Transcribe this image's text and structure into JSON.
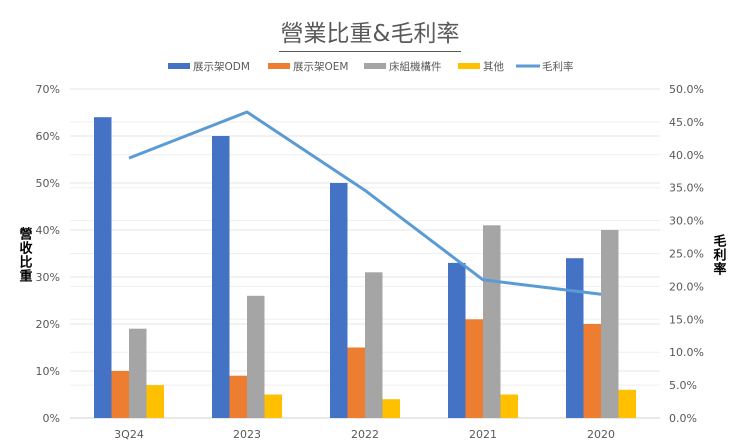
{
  "chart_data": {
    "type": "bar+line",
    "title": "營業比重&毛利率",
    "categories": [
      "3Q24",
      "2023",
      "2022",
      "2021",
      "2020"
    ],
    "ylabel": "營收比重",
    "y2label": "毛利率",
    "ylim": [
      0,
      70
    ],
    "y2lim": [
      0,
      50
    ],
    "yticks": [
      "0%",
      "10%",
      "20%",
      "30%",
      "40%",
      "50%",
      "60%",
      "70%"
    ],
    "y2ticks": [
      "0.0%",
      "5.0%",
      "10.0%",
      "15.0%",
      "20.0%",
      "25.0%",
      "30.0%",
      "35.0%",
      "40.0%",
      "45.0%",
      "50.0%"
    ],
    "legend_position": "top",
    "grid": true,
    "series": [
      {
        "name": "展示架ODM",
        "type": "bar",
        "axis": "left",
        "color": "#4472C4",
        "values": [
          64,
          60,
          50,
          33,
          34
        ]
      },
      {
        "name": "展示架OEM",
        "type": "bar",
        "axis": "left",
        "color": "#ED7D31",
        "values": [
          10,
          9,
          15,
          21,
          20
        ]
      },
      {
        "name": "床組機構件",
        "type": "bar",
        "axis": "left",
        "color": "#A5A5A5",
        "values": [
          19,
          26,
          31,
          41,
          40
        ]
      },
      {
        "name": "其他",
        "type": "bar",
        "axis": "left",
        "color": "#FFC000",
        "values": [
          7,
          5,
          4,
          5,
          6
        ]
      },
      {
        "name": "毛利率",
        "type": "line",
        "axis": "right",
        "color": "#5B9BD5",
        "values": [
          39.5,
          46.5,
          34.6,
          21.0,
          18.8
        ]
      }
    ]
  }
}
